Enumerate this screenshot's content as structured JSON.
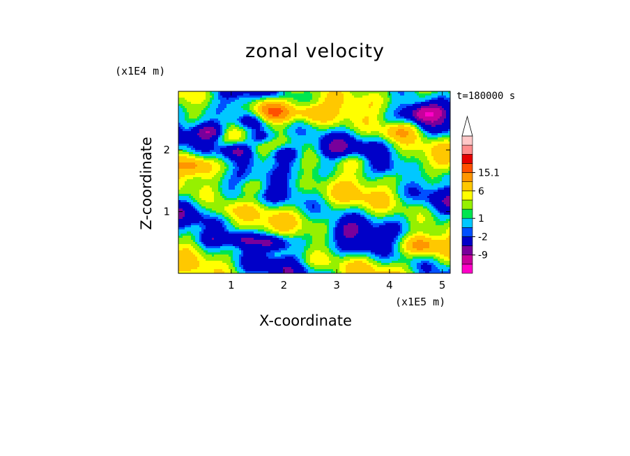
{
  "chart_data": {
    "type": "heatmap",
    "title": "zonal velocity",
    "xlabel": "X-coordinate",
    "ylabel": "Z-coordinate",
    "x_unit": "(x1E5 m)",
    "y_unit": "(x1E4 m)",
    "time_label": "t=180000 s",
    "xlim": [
      0,
      5.15
    ],
    "ylim": [
      0,
      2.95
    ],
    "x_ticks": [
      1,
      2,
      3,
      4,
      5
    ],
    "y_ticks": [
      1,
      2
    ],
    "x_tick_labels": [
      "1",
      "2",
      "3",
      "4",
      "5"
    ],
    "y_tick_labels": [
      "1",
      "2"
    ],
    "colorbar": {
      "levels": [
        -13.5,
        -9,
        -6,
        -2,
        -1,
        1,
        2,
        4,
        6,
        10,
        15.1
      ],
      "tick_labels": [
        "15.1",
        "6",
        "1",
        "-2",
        "-9"
      ],
      "tick_values": [
        15.1,
        6,
        1,
        -2,
        -9
      ],
      "colors": [
        "#ff00c8",
        "#c8009b",
        "#78009b",
        "#0000c8",
        "#0050ff",
        "#00c8ff",
        "#00e650",
        "#96f000",
        "#ffff00",
        "#ffc800",
        "#ff9600",
        "#ff5000",
        "#e60000",
        "#ff8c8c",
        "#ffc8c8",
        "#ffffff"
      ],
      "extend": "max"
    },
    "features": [
      {
        "x": 0.6,
        "z": 2.3,
        "u": -10
      },
      {
        "x": 1.1,
        "z": 2.0,
        "u": -9
      },
      {
        "x": 1.6,
        "z": 2.2,
        "u": -10
      },
      {
        "x": 2.0,
        "z": 1.95,
        "u": -9
      },
      {
        "x": 1.3,
        "z": 2.45,
        "u": -6
      },
      {
        "x": 1.8,
        "z": 2.6,
        "u": 15
      },
      {
        "x": 2.5,
        "z": 2.6,
        "u": 6
      },
      {
        "x": 1.7,
        "z": 2.75,
        "u": 9
      },
      {
        "x": 1.4,
        "z": 1.4,
        "u": 6
      },
      {
        "x": 0.3,
        "z": 1.75,
        "u": 7
      },
      {
        "x": 1.2,
        "z": 0.55,
        "u": -9
      },
      {
        "x": 1.8,
        "z": 0.5,
        "u": -10
      },
      {
        "x": 0.6,
        "z": 0.55,
        "u": -6
      },
      {
        "x": 3.2,
        "z": 0.7,
        "u": -4
      },
      {
        "x": 3.5,
        "z": 0.45,
        "u": -3
      },
      {
        "x": 4.7,
        "z": 2.6,
        "u": -11
      },
      {
        "x": 4.2,
        "z": 2.3,
        "u": 8
      },
      {
        "x": 4.0,
        "z": 1.7,
        "u": -4
      },
      {
        "x": 5.0,
        "z": 1.6,
        "u": -3
      },
      {
        "x": 4.6,
        "z": 0.45,
        "u": 9
      },
      {
        "x": 3.3,
        "z": 1.8,
        "u": 4
      },
      {
        "x": 2.9,
        "z": 2.0,
        "u": -3
      },
      {
        "x": 0.9,
        "z": 1.0,
        "u": 3
      },
      {
        "x": 2.6,
        "z": 0.2,
        "u": 2
      }
    ]
  }
}
